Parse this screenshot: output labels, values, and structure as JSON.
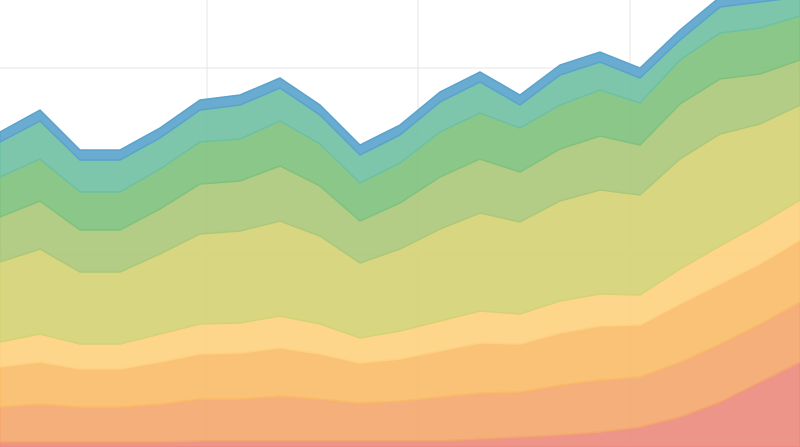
{
  "chart_data": {
    "type": "area",
    "stacked": true,
    "grid": true,
    "x": [
      0,
      40,
      80,
      120,
      160,
      200,
      240,
      280,
      320,
      360,
      400,
      440,
      480,
      520,
      560,
      600,
      640,
      680,
      720,
      760,
      800
    ],
    "xlim": [
      0,
      800
    ],
    "ylim": [
      0,
      447
    ],
    "xticks": [
      207,
      418,
      630
    ],
    "yticks": [
      192,
      379
    ],
    "series": [
      {
        "color": "#ec8a7c",
        "values": [
          5,
          5,
          5,
          5,
          5,
          6,
          6,
          6,
          6,
          6,
          6,
          6,
          8,
          10,
          12,
          15,
          20,
          30,
          45,
          65,
          85
        ]
      },
      {
        "color": "#f4a66c",
        "values": [
          35,
          38,
          35,
          35,
          38,
          42,
          42,
          45,
          42,
          38,
          40,
          44,
          46,
          45,
          50,
          52,
          50,
          55,
          58,
          58,
          60
        ]
      },
      {
        "color": "#f9bb68",
        "values": [
          40,
          42,
          38,
          38,
          42,
          45,
          46,
          48,
          45,
          40,
          42,
          46,
          50,
          48,
          52,
          54,
          52,
          58,
          60,
          60,
          62
        ]
      },
      {
        "color": "#fdd180",
        "values": [
          25,
          28,
          25,
          25,
          28,
          30,
          30,
          32,
          30,
          25,
          28,
          30,
          32,
          30,
          32,
          32,
          30,
          35,
          38,
          40,
          40
        ]
      },
      {
        "color": "#d5d274",
        "values": [
          80,
          85,
          72,
          72,
          80,
          90,
          92,
          95,
          88,
          75,
          82,
          92,
          98,
          92,
          100,
          104,
          100,
          110,
          112,
          100,
          95
        ]
      },
      {
        "color": "#abc87a",
        "values": [
          45,
          48,
          42,
          42,
          45,
          50,
          50,
          55,
          50,
          42,
          46,
          52,
          54,
          50,
          52,
          54,
          50,
          55,
          55,
          50,
          45
        ]
      },
      {
        "color": "#80c17d",
        "values": [
          40,
          42,
          38,
          38,
          40,
          42,
          42,
          45,
          42,
          38,
          40,
          45,
          46,
          44,
          44,
          46,
          42,
          44,
          46,
          46,
          44
        ]
      },
      {
        "color": "#6fc0a3",
        "values": [
          35,
          38,
          32,
          32,
          31,
          32,
          34,
          33,
          29,
          28,
          28,
          30,
          31,
          23,
          30,
          28,
          25,
          20,
          26,
          26,
          19
        ]
      },
      {
        "color": "#5aa3cc",
        "values": [
          10,
          11,
          10,
          10,
          10,
          10,
          10,
          10,
          10,
          10,
          10,
          10,
          10,
          10,
          10,
          10,
          10,
          10,
          10,
          10,
          10
        ]
      }
    ]
  }
}
